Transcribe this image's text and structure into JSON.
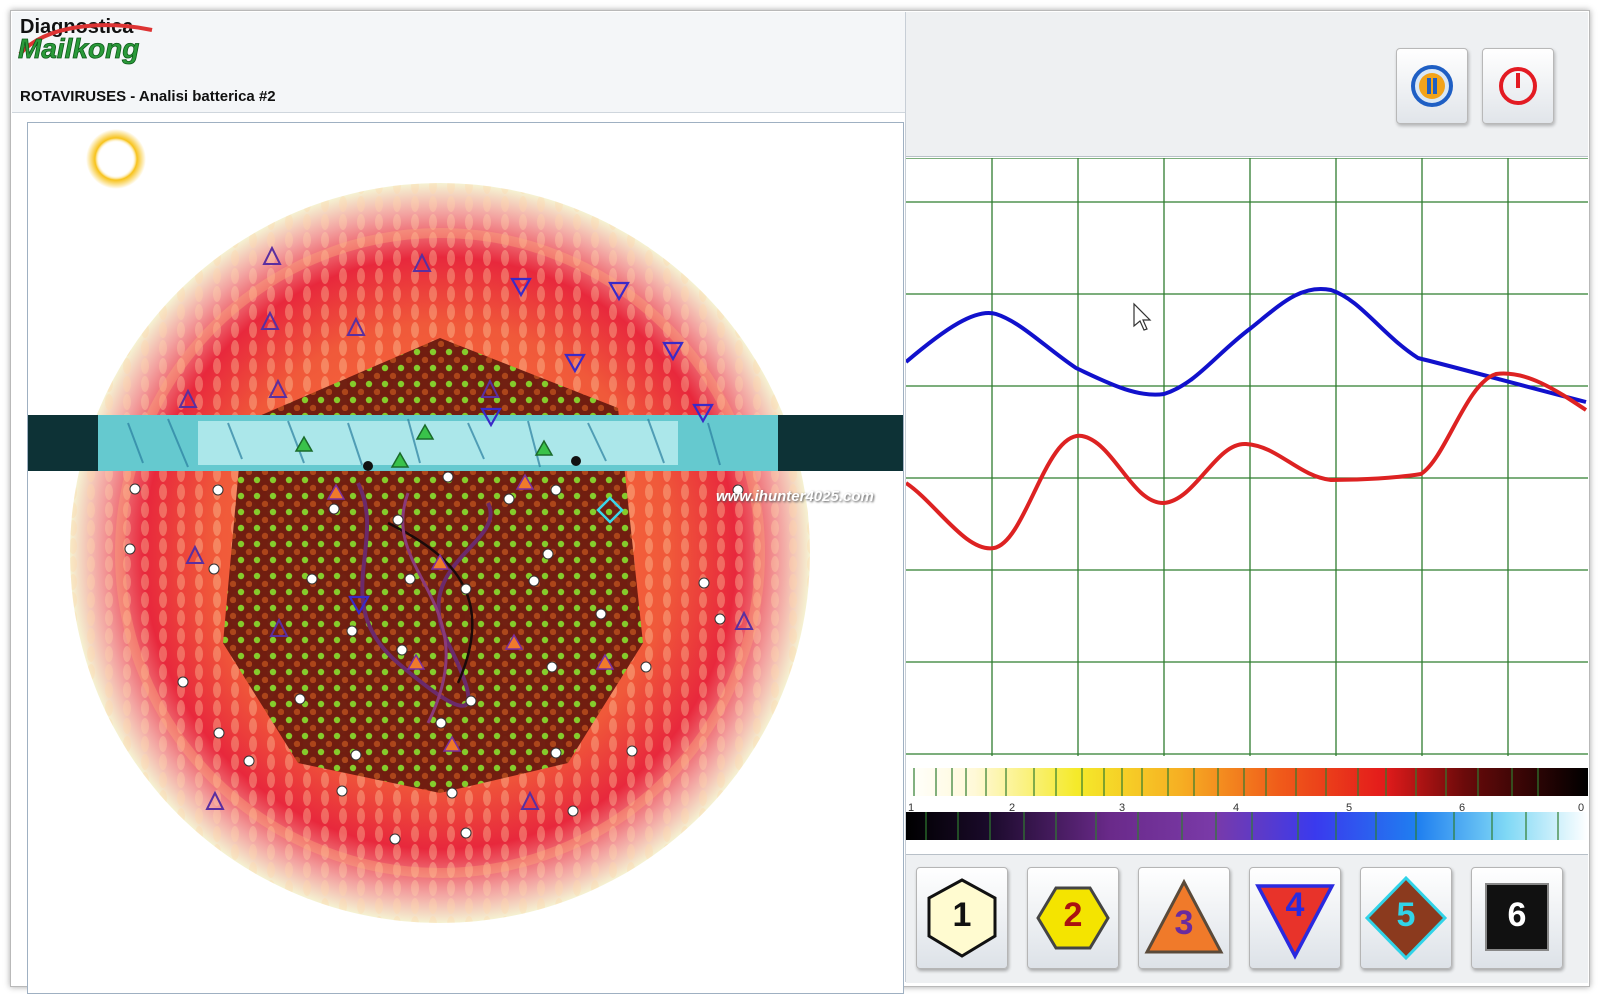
{
  "app": {
    "title": "Diagnostica",
    "logo_text": "Mailkong",
    "analysis_title": "ROTAVIRUSES - Analisi batterica #2",
    "watermark": "www.ihunter4025.com"
  },
  "toolbar": {
    "buttons": [
      {
        "icon": "audio-speaker-icon"
      },
      {
        "icon": "power-icon"
      }
    ]
  },
  "graph": {
    "series": [
      {
        "name": "",
        "color": "#1111cc"
      },
      {
        "name": "",
        "color": "#dd2222"
      }
    ]
  },
  "scale": {
    "labels": [
      "1",
      "2",
      "3",
      "4",
      "5",
      "6",
      "0"
    ]
  },
  "symbols": [
    {
      "label": "1",
      "shape": "hexagon",
      "fill": "#fffbd0",
      "text_color": "#111111"
    },
    {
      "label": "2",
      "shape": "hexagon-flat",
      "fill": "#f4e400",
      "text_color": "#aa1111"
    },
    {
      "label": "3",
      "shape": "triangle",
      "fill": "#f07a2a",
      "text_color": "#6a2b9e"
    },
    {
      "label": "4",
      "shape": "triangle-down",
      "fill": "#e8332a",
      "text_color": "#2a2adf"
    },
    {
      "label": "5",
      "shape": "diamond",
      "fill": "#8b3a1e",
      "text_color": "#31d3e8"
    },
    {
      "label": "6",
      "shape": "square",
      "fill": "#111111",
      "text_color": "#ffffff"
    }
  ],
  "colors": {
    "grid": "#2f7d2f",
    "accent_red": "#e31b23",
    "accent_blue": "#1f5fc4"
  }
}
